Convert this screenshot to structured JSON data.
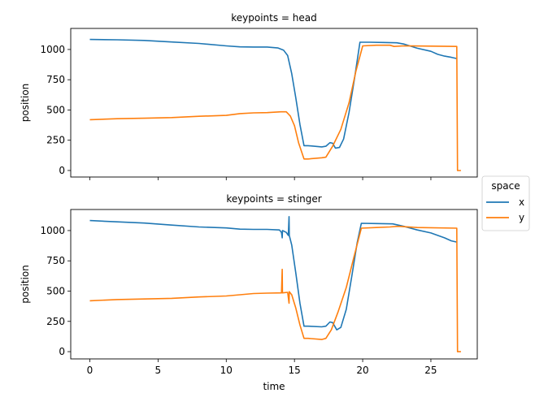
{
  "chart_data": [
    {
      "type": "line",
      "title": "keypoints = head",
      "xlabel": "",
      "ylabel": "position",
      "xlim": [
        -1.4,
        28.4
      ],
      "ylim": [
        -54,
        1174
      ],
      "xticks": [
        0,
        5,
        10,
        15,
        20,
        25
      ],
      "yticks": [
        0,
        250,
        500,
        750,
        1000
      ],
      "show_xtick_labels": false,
      "grid": false,
      "series": [
        {
          "name": "x",
          "color": "#1f77b4",
          "points": [
            [
              0,
              1083
            ],
            [
              2,
              1080
            ],
            [
              4,
              1075
            ],
            [
              6,
              1062
            ],
            [
              8,
              1050
            ],
            [
              10,
              1030
            ],
            [
              11,
              1022
            ],
            [
              12,
              1020
            ],
            [
              13,
              1020
            ],
            [
              13.8,
              1012
            ],
            [
              14.2,
              995
            ],
            [
              14.5,
              950
            ],
            [
              14.8,
              800
            ],
            [
              15.1,
              600
            ],
            [
              15.4,
              380
            ],
            [
              15.7,
              205
            ],
            [
              16,
              205
            ],
            [
              17,
              195
            ],
            [
              17.3,
              200
            ],
            [
              17.6,
              230
            ],
            [
              17.8,
              225
            ],
            [
              18,
              185
            ],
            [
              18.3,
              190
            ],
            [
              18.6,
              260
            ],
            [
              19,
              480
            ],
            [
              19.4,
              760
            ],
            [
              19.8,
              1060
            ],
            [
              20.5,
              1060
            ],
            [
              21.5,
              1058
            ],
            [
              22.5,
              1055
            ],
            [
              23,
              1045
            ],
            [
              24,
              1010
            ],
            [
              25,
              985
            ],
            [
              25.5,
              960
            ],
            [
              26,
              945
            ],
            [
              26.5,
              935
            ],
            [
              26.9,
              925
            ]
          ]
        },
        {
          "name": "y",
          "color": "#ff7f0e",
          "points": [
            [
              0,
              420
            ],
            [
              2,
              428
            ],
            [
              4,
              432
            ],
            [
              6,
              437
            ],
            [
              8,
              448
            ],
            [
              10,
              455
            ],
            [
              11,
              470
            ],
            [
              12,
              476
            ],
            [
              13,
              478
            ],
            [
              14,
              485
            ],
            [
              14.4,
              485
            ],
            [
              14.7,
              450
            ],
            [
              15,
              370
            ],
            [
              15.3,
              230
            ],
            [
              15.7,
              95
            ],
            [
              16,
              95
            ],
            [
              17,
              105
            ],
            [
              17.3,
              110
            ],
            [
              17.8,
              200
            ],
            [
              18.4,
              340
            ],
            [
              19,
              560
            ],
            [
              19.5,
              820
            ],
            [
              20,
              1030
            ],
            [
              21,
              1035
            ],
            [
              22,
              1035
            ],
            [
              22.3,
              1025
            ],
            [
              23,
              1030
            ],
            [
              25,
              1028
            ],
            [
              26.9,
              1025
            ],
            [
              26.95,
              0
            ],
            [
              27.2,
              0
            ]
          ]
        }
      ]
    },
    {
      "type": "line",
      "title": "keypoints = stinger",
      "xlabel": "time",
      "ylabel": "position",
      "xlim": [
        -1.4,
        28.4
      ],
      "ylim": [
        -60,
        1174
      ],
      "xticks": [
        0,
        5,
        10,
        15,
        20,
        25
      ],
      "yticks": [
        0,
        250,
        500,
        750,
        1000
      ],
      "show_xtick_labels": true,
      "grid": false,
      "series": [
        {
          "name": "x",
          "color": "#1f77b4",
          "points": [
            [
              0,
              1083
            ],
            [
              2,
              1072
            ],
            [
              4,
              1062
            ],
            [
              6,
              1045
            ],
            [
              8,
              1030
            ],
            [
              10,
              1022
            ],
            [
              11,
              1012
            ],
            [
              12,
              1010
            ],
            [
              13,
              1010
            ],
            [
              13.9,
              1005
            ],
            [
              14.05,
              985
            ],
            [
              14.1,
              940
            ],
            [
              14.12,
              1000
            ],
            [
              14.4,
              985
            ],
            [
              14.55,
              960
            ],
            [
              14.6,
              1115
            ],
            [
              14.62,
              960
            ],
            [
              14.8,
              880
            ],
            [
              15.1,
              650
            ],
            [
              15.4,
              400
            ],
            [
              15.7,
              210
            ],
            [
              16,
              210
            ],
            [
              17,
              205
            ],
            [
              17.3,
              210
            ],
            [
              17.6,
              245
            ],
            [
              17.8,
              240
            ],
            [
              18.1,
              180
            ],
            [
              18.4,
              200
            ],
            [
              18.8,
              350
            ],
            [
              19.2,
              620
            ],
            [
              19.6,
              900
            ],
            [
              19.9,
              1060
            ],
            [
              21,
              1058
            ],
            [
              22.2,
              1055
            ],
            [
              23,
              1035
            ],
            [
              24,
              1005
            ],
            [
              25,
              980
            ],
            [
              25.5,
              960
            ],
            [
              26,
              940
            ],
            [
              26.5,
              915
            ],
            [
              26.9,
              905
            ]
          ]
        },
        {
          "name": "y",
          "color": "#ff7f0e",
          "points": [
            [
              0,
              420
            ],
            [
              2,
              430
            ],
            [
              4,
              435
            ],
            [
              6,
              440
            ],
            [
              8,
              452
            ],
            [
              10,
              460
            ],
            [
              11,
              470
            ],
            [
              12,
              480
            ],
            [
              13,
              483
            ],
            [
              14.05,
              485
            ],
            [
              14.1,
              680
            ],
            [
              14.12,
              485
            ],
            [
              14.5,
              490
            ],
            [
              14.6,
              400
            ],
            [
              14.62,
              495
            ],
            [
              14.8,
              470
            ],
            [
              15.1,
              360
            ],
            [
              15.4,
              220
            ],
            [
              15.7,
              110
            ],
            [
              16,
              110
            ],
            [
              17,
              100
            ],
            [
              17.3,
              110
            ],
            [
              17.7,
              180
            ],
            [
              18.2,
              330
            ],
            [
              18.8,
              530
            ],
            [
              19.4,
              800
            ],
            [
              19.9,
              1020
            ],
            [
              21,
              1025
            ],
            [
              22,
              1030
            ],
            [
              22.6,
              1035
            ],
            [
              24,
              1025
            ],
            [
              26.9,
              1020
            ],
            [
              26.95,
              0
            ],
            [
              27.2,
              0
            ]
          ]
        }
      ]
    }
  ],
  "legend": {
    "title": "space",
    "placement": "right",
    "entries": [
      {
        "label": "x",
        "color": "#1f77b4"
      },
      {
        "label": "y",
        "color": "#ff7f0e"
      }
    ]
  }
}
